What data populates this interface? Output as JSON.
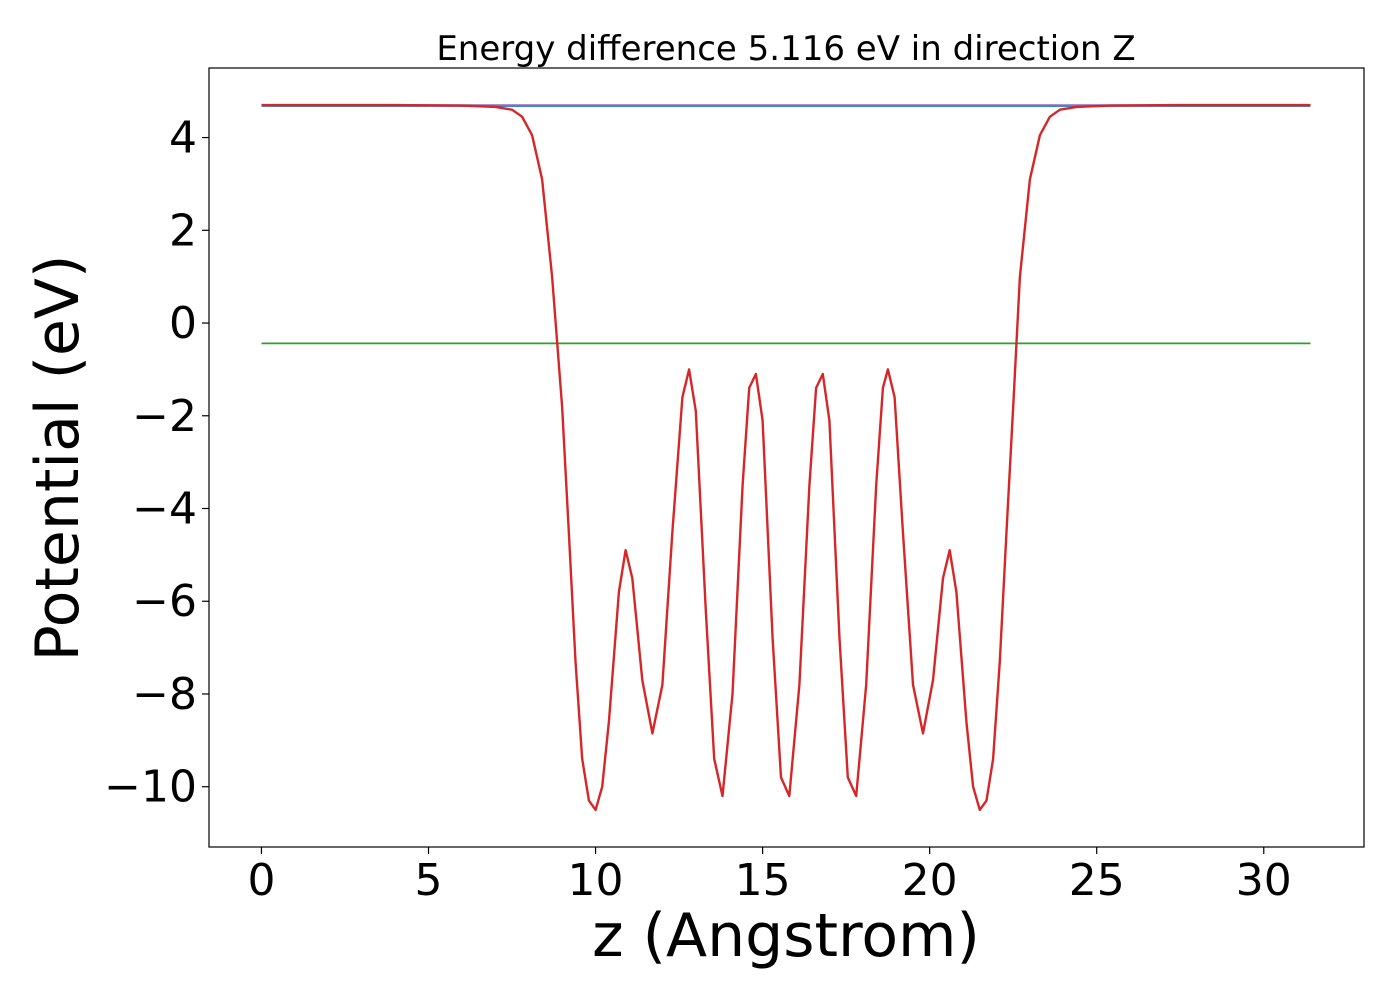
{
  "chart_data": {
    "type": "line",
    "title": "Energy difference 5.116 eV in direction Z",
    "xlabel": "z (Angstrom)",
    "ylabel": "Potential (eV)",
    "xlim": [
      -1.57,
      33.0
    ],
    "ylim": [
      -11.3,
      5.5
    ],
    "xticks": [
      0,
      5,
      10,
      15,
      20,
      25,
      30
    ],
    "xtick_labels": [
      "0",
      "5",
      "10",
      "15",
      "20",
      "25",
      "30"
    ],
    "yticks": [
      4,
      2,
      0,
      -2,
      -4,
      -6,
      -8,
      -10
    ],
    "ytick_labels": [
      "4",
      "2",
      "0",
      "−2",
      "−4",
      "−6",
      "−8",
      "−10"
    ],
    "grid": false,
    "series": [
      {
        "color": "#1f77b4",
        "x": [
          0,
          31.4
        ],
        "y": [
          4.68,
          4.68
        ]
      },
      {
        "color": "#2ca02c",
        "x": [
          0,
          31.4
        ],
        "y": [
          -0.44,
          -0.44
        ]
      },
      {
        "color": "#9467bd",
        "x": [
          0,
          31.4
        ],
        "y": [
          4.7,
          4.7
        ]
      },
      {
        "color": "#d62728",
        "x": [
          0,
          2,
          4,
          6,
          7,
          7.5,
          7.8,
          8.1,
          8.4,
          8.7,
          9.0,
          9.2,
          9.4,
          9.6,
          9.8,
          10.0,
          10.2,
          10.4,
          10.7,
          10.9,
          11.1,
          11.4,
          11.7,
          12.0,
          12.3,
          12.6,
          12.8,
          13.0,
          13.3,
          13.55,
          13.8,
          14.1,
          14.4,
          14.6,
          14.8,
          15.0,
          15.3,
          15.55,
          15.8,
          16.1,
          16.4,
          16.6,
          16.8,
          17.0,
          17.3,
          17.55,
          17.8,
          18.1,
          18.4,
          18.6,
          18.75,
          18.95,
          19.2,
          19.5,
          19.8,
          20.1,
          20.4,
          20.6,
          20.8,
          21.1,
          21.3,
          21.5,
          21.7,
          21.9,
          22.1,
          22.3,
          22.5,
          22.7,
          23.0,
          23.3,
          23.6,
          23.9,
          24.4,
          25.4,
          27.4,
          29.4,
          31.4
        ],
        "y": [
          4.7,
          4.7,
          4.7,
          4.69,
          4.66,
          4.6,
          4.45,
          4.05,
          3.1,
          1.0,
          -1.8,
          -4.5,
          -7.3,
          -9.4,
          -10.3,
          -10.5,
          -10.0,
          -8.6,
          -5.8,
          -4.9,
          -5.5,
          -7.7,
          -8.85,
          -7.8,
          -4.5,
          -1.6,
          -1.0,
          -1.9,
          -6.2,
          -9.4,
          -10.2,
          -8.0,
          -3.5,
          -1.4,
          -1.1,
          -2.1,
          -6.8,
          -9.8,
          -10.2,
          -7.8,
          -3.5,
          -1.4,
          -1.1,
          -2.1,
          -6.8,
          -9.8,
          -10.2,
          -7.8,
          -3.5,
          -1.4,
          -1.0,
          -1.6,
          -4.5,
          -7.8,
          -8.85,
          -7.7,
          -5.5,
          -4.9,
          -5.8,
          -8.6,
          -10.0,
          -10.5,
          -10.3,
          -9.4,
          -7.3,
          -4.5,
          -1.8,
          1.0,
          3.1,
          4.05,
          4.45,
          4.6,
          4.66,
          4.69,
          4.7,
          4.7,
          4.7
        ]
      }
    ]
  }
}
